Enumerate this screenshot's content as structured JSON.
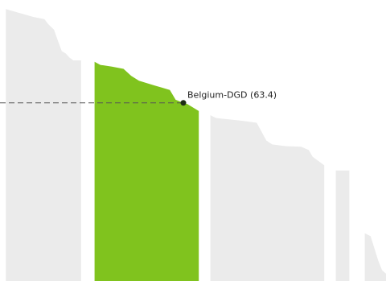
{
  "chart_data": {
    "type": "area",
    "title": "",
    "xlabel": "",
    "ylabel": "",
    "ylim": [
      0,
      100
    ],
    "grid": false,
    "legend": "none",
    "x_range": [
      0,
      100
    ],
    "colors": {
      "highlight": "#80c31e",
      "muted": "#ebebeb",
      "marker": "#1e2d14",
      "reference_line": "#555555"
    },
    "segments": [
      {
        "name": "",
        "highlighted": false,
        "points": [
          [
            1.5,
            96.8
          ],
          [
            3.5,
            96.0
          ],
          [
            8.5,
            94.0
          ],
          [
            11.5,
            93.2
          ],
          [
            12.5,
            91.4
          ],
          [
            14,
            89.4
          ],
          [
            15,
            85.5
          ],
          [
            16,
            81.8
          ],
          [
            17,
            81.0
          ],
          [
            18,
            79.5
          ],
          [
            19,
            78.5
          ],
          [
            21,
            78.5
          ]
        ]
      },
      {
        "name": "",
        "highlighted": true,
        "points": [
          [
            24.5,
            78.0
          ],
          [
            26,
            76.9
          ],
          [
            29,
            76.3
          ],
          [
            32,
            75.5
          ],
          [
            34,
            73.0
          ],
          [
            36,
            71.3
          ],
          [
            40,
            69.6
          ],
          [
            42,
            68.8
          ],
          [
            44,
            68.0
          ],
          [
            45.5,
            64.5
          ],
          [
            47.5,
            63.4
          ],
          [
            48.5,
            63.0
          ],
          [
            51.5,
            60.5
          ]
        ]
      },
      {
        "name": "",
        "highlighted": false,
        "points": [
          [
            54.5,
            59.0
          ],
          [
            56,
            58.0
          ],
          [
            63,
            57.0
          ],
          [
            66.5,
            56.3
          ],
          [
            67.5,
            53.8
          ],
          [
            69,
            50.0
          ],
          [
            70.5,
            48.6
          ],
          [
            74,
            48.0
          ],
          [
            78,
            47.8
          ],
          [
            80,
            46.6
          ],
          [
            81,
            44.2
          ],
          [
            83,
            42.2
          ],
          [
            84,
            41.2
          ]
        ]
      },
      {
        "name": "",
        "highlighted": false,
        "points": [
          [
            87,
            39.3
          ],
          [
            90.5,
            39.3
          ]
        ]
      },
      {
        "name": "",
        "highlighted": false,
        "points": [
          [
            94.5,
            17.0
          ],
          [
            96,
            16.0
          ],
          [
            97,
            11.6
          ],
          [
            98,
            7.2
          ],
          [
            99,
            3.8
          ],
          [
            100,
            2.6
          ]
        ]
      }
    ],
    "highlight_point": {
      "x": 47.5,
      "y": 63.4
    },
    "annotations": [
      {
        "text": "Belgium-DGD (63.4)"
      }
    ]
  }
}
